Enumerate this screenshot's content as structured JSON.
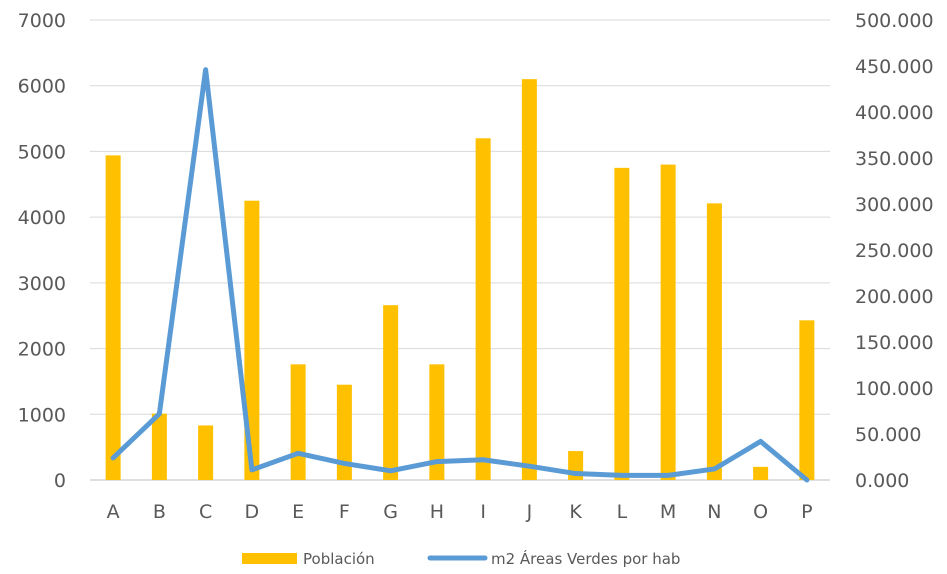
{
  "chart_data": {
    "type": "bar",
    "categories": [
      "A",
      "B",
      "C",
      "D",
      "E",
      "F",
      "G",
      "H",
      "I",
      "J",
      "K",
      "L",
      "M",
      "N",
      "O",
      "P"
    ],
    "series": [
      {
        "name": "Población",
        "type": "bar",
        "axis": "left",
        "color": "#FFC000",
        "values": [
          4940,
          1010,
          830,
          4250,
          1760,
          1450,
          2660,
          1760,
          5200,
          6100,
          440,
          4750,
          4800,
          4210,
          200,
          2430
        ]
      },
      {
        "name": "m2 Áreas Verdes por hab",
        "type": "line",
        "axis": "right",
        "color": "#5B9BD5",
        "values": [
          24000,
          72000,
          446000,
          11000,
          29000,
          18000,
          10000,
          20000,
          22000,
          15000,
          7000,
          5000,
          5000,
          12000,
          42000,
          0
        ]
      }
    ],
    "y_left": {
      "range": [
        0,
        7000
      ],
      "ticks": [
        "0",
        "1000",
        "2000",
        "3000",
        "4000",
        "5000",
        "6000",
        "7000"
      ]
    },
    "y_right": {
      "range": [
        0,
        500000
      ],
      "ticks": [
        "0.000",
        "50.000",
        "100.000",
        "150.000",
        "200.000",
        "250.000",
        "300.000",
        "350.000",
        "400.000",
        "450.000",
        "500.000"
      ]
    },
    "grid": true,
    "legend": "bottom"
  }
}
